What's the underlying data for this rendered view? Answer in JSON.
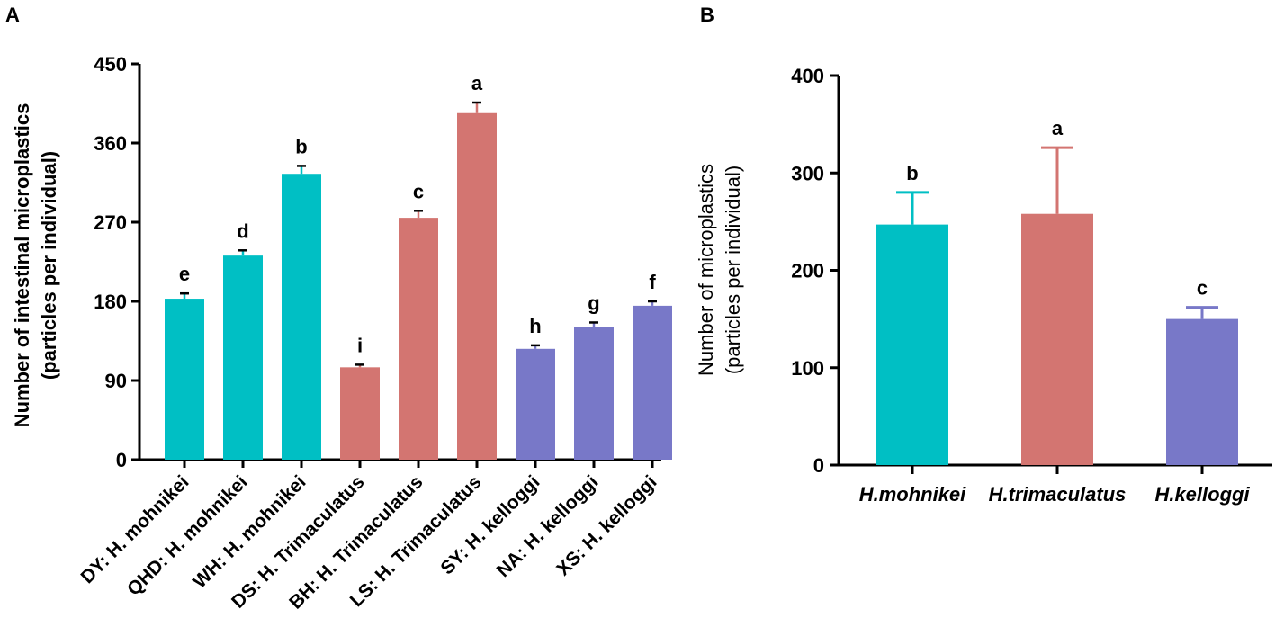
{
  "panel_labels": {
    "a": "A",
    "b": "B"
  },
  "colors": {
    "teal": "#00BFC4",
    "salmon": "#D37571",
    "purple": "#7878C8",
    "axis": "#000000"
  },
  "chart_data": [
    {
      "type": "bar",
      "panel": "A",
      "title": "",
      "ylabel_line1": "Number of intestinal microplastics",
      "ylabel_line2": "(particles per individual)",
      "xlabel": "",
      "ylim": [
        0,
        450
      ],
      "yticks": [
        0,
        90,
        180,
        270,
        360,
        450
      ],
      "categories": [
        "DY: H. mohnikei",
        "QHD: H. mohnikei",
        "WH: H. mohnikei",
        "DS: H. Trimaculatus",
        "BH: H. Trimaculatus",
        "LS: H. Trimaculatus",
        "SY: H. kelloggi",
        "NA: H. kelloggi",
        "XS: H. kelloggi"
      ],
      "values": [
        183,
        232,
        325,
        105,
        275,
        394,
        126,
        151,
        175
      ],
      "errors": [
        6,
        6,
        9,
        3,
        8,
        12,
        4,
        5,
        5
      ],
      "letters": [
        "e",
        "d",
        "b",
        "i",
        "c",
        "a",
        "h",
        "g",
        "f"
      ],
      "bar_colors": [
        "#00BFC4",
        "#00BFC4",
        "#00BFC4",
        "#D37571",
        "#D37571",
        "#D37571",
        "#7878C8",
        "#7878C8",
        "#7878C8"
      ]
    },
    {
      "type": "bar",
      "panel": "B",
      "title": "",
      "ylabel_line1": "Number of microplastics",
      "ylabel_line2": "(particles per individual)",
      "xlabel": "",
      "ylim": [
        0,
        400
      ],
      "yticks": [
        0,
        100,
        200,
        300,
        400
      ],
      "categories": [
        "H.mohnikei",
        "H.trimaculatus",
        "H.kelloggi"
      ],
      "values": [
        247,
        258,
        150
      ],
      "errors": [
        33,
        68,
        12
      ],
      "letters": [
        "b",
        "a",
        "c"
      ],
      "bar_colors": [
        "#00BFC4",
        "#D37571",
        "#7878C8"
      ]
    }
  ]
}
